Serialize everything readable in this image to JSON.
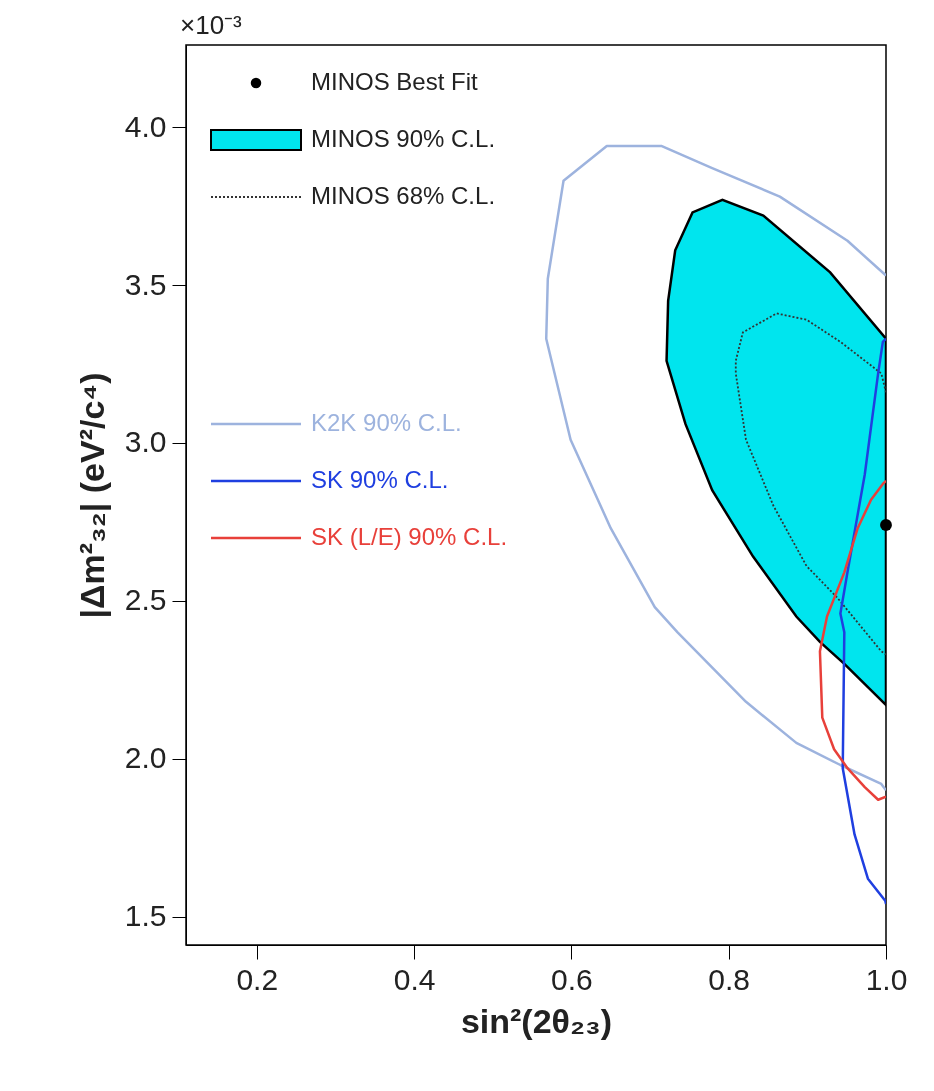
{
  "chart_data": {
    "type": "line",
    "xlabel": "sin²(2θ₂₃)",
    "ylabel": "|Δm²₃₂| (eV²/c⁴)",
    "annotations": [
      "×10⁻³"
    ],
    "xlim": [
      0.11,
      1.0
    ],
    "ylim": [
      1.41,
      4.26
    ],
    "xticks": [
      0.2,
      0.4,
      0.6,
      0.8,
      {
        "value": 1.0,
        "label": "1.0"
      }
    ],
    "yticks": [
      1.5,
      {
        "value": 2.0,
        "label": "2.0"
      },
      2.5,
      {
        "value": 3.0,
        "label": "3.0"
      },
      3.5,
      {
        "value": 4.0,
        "label": "4.0"
      }
    ],
    "legend": "top left",
    "grid": false,
    "series": [
      {
        "name": "MINOS 90% C.L.",
        "type": "area",
        "color": "#00e5ee",
        "x": [
          1.0,
          0.929,
          0.844,
          0.792,
          0.754,
          0.732,
          0.723,
          0.721,
          0.745,
          0.779,
          0.831,
          0.886,
          0.916,
          0.947,
          1.0
        ],
        "values": [
          3.33,
          3.54,
          3.72,
          3.77,
          3.73,
          3.61,
          3.45,
          3.26,
          3.06,
          2.85,
          2.64,
          2.45,
          2.37,
          2.3,
          2.17
        ]
      },
      {
        "name": "MINOS 68% C.L.",
        "line_style": "dotted",
        "color": "#333333",
        "x": [
          1.0,
          0.994,
          0.942,
          0.899,
          0.861,
          0.818,
          0.809,
          0.809,
          0.822,
          0.857,
          0.899,
          0.938,
          0.994,
          1.0
        ],
        "values": [
          3.16,
          3.22,
          3.32,
          3.39,
          3.41,
          3.35,
          3.26,
          3.22,
          3.01,
          2.8,
          2.61,
          2.51,
          2.34,
          2.33
        ]
      },
      {
        "name": "K2K 90% C.L.",
        "line_style": "solid",
        "color": "#9db3de",
        "x": [
          1.0,
          0.951,
          0.865,
          0.779,
          0.715,
          0.645,
          0.59,
          0.57,
          0.568,
          0.599,
          0.65,
          0.706,
          0.735,
          0.822,
          0.886,
          0.942,
          0.994,
          1.0
        ],
        "values": [
          3.53,
          3.64,
          3.78,
          3.87,
          3.94,
          3.94,
          3.83,
          3.52,
          3.33,
          3.01,
          2.73,
          2.48,
          2.4,
          2.18,
          2.05,
          1.98,
          1.92,
          1.9
        ]
      },
      {
        "name": "SK 90% C.L.",
        "line_style": "solid",
        "color": "#1f3fe0",
        "x": [
          1.0,
          0.996,
          0.99,
          0.973,
          0.951,
          0.942,
          0.947,
          0.945,
          0.96,
          0.977,
          0.999,
          1.0
        ],
        "values": [
          3.33,
          3.32,
          3.22,
          2.9,
          2.59,
          2.46,
          2.4,
          1.97,
          1.76,
          1.62,
          1.55,
          1.54
        ]
      },
      {
        "name": "SK (L/E) 90% C.L.",
        "line_style": "solid",
        "color": "#e8403a",
        "x": [
          1.0,
          0.996,
          0.981,
          0.964,
          0.947,
          0.925,
          0.916,
          0.919,
          0.934,
          0.951,
          0.973,
          0.99,
          1.0
        ],
        "values": [
          2.88,
          2.87,
          2.82,
          2.73,
          2.59,
          2.45,
          2.34,
          2.13,
          2.03,
          1.97,
          1.91,
          1.87,
          1.88
        ]
      },
      {
        "name": "MINOS Best Fit",
        "type": "scatter",
        "marker": "circle",
        "color": "#000000",
        "x": [
          1.0
        ],
        "values": [
          2.74
        ]
      }
    ]
  }
}
